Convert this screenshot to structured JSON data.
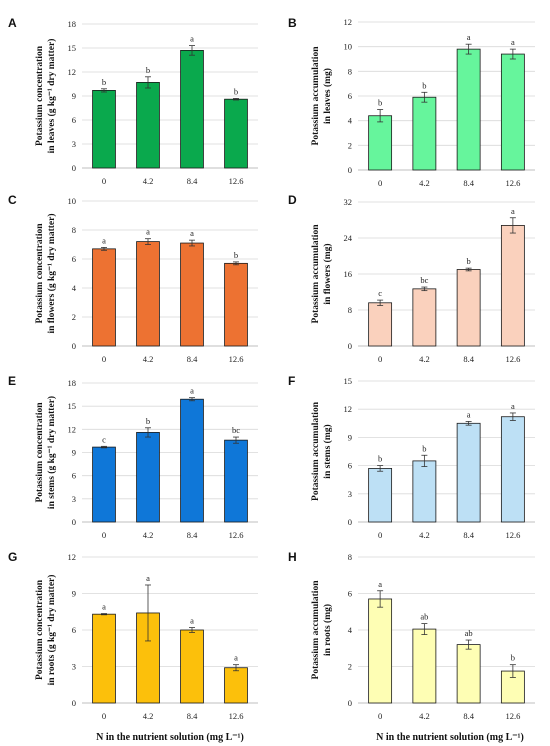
{
  "figure": {
    "xlabel_left": "N in the nutrient solution (mg L⁻¹)",
    "xlabel_right": "N in the nutrient solution (mg L⁻¹)"
  },
  "chart_data": [
    {
      "panel": "A",
      "type": "bar",
      "categories": [
        "0",
        "4.2",
        "8.4",
        "12.6"
      ],
      "values": [
        9.7,
        10.7,
        14.7,
        8.6
      ],
      "errors": [
        0.2,
        0.7,
        0.6,
        0.1
      ],
      "letters": [
        "b",
        "b",
        "a",
        "b"
      ],
      "ylabel_lines": [
        "Potassium concentration",
        "in leaves (g kg⁻¹ dry matter)"
      ],
      "ylim": [
        0,
        18
      ],
      "yticks": [
        0,
        3,
        6,
        9,
        12,
        15,
        18
      ],
      "grid": true,
      "color": "#0aa94d"
    },
    {
      "panel": "B",
      "type": "bar",
      "categories": [
        "0",
        "4.2",
        "8.4",
        "12.6"
      ],
      "values": [
        4.4,
        5.9,
        9.8,
        9.4
      ],
      "errors": [
        0.5,
        0.4,
        0.4,
        0.4
      ],
      "letters": [
        "b",
        "b",
        "a",
        "a"
      ],
      "ylabel_lines": [
        "Potassium accumulation",
        "in leaves (mg)"
      ],
      "ylim": [
        0,
        12
      ],
      "yticks": [
        0,
        2,
        4,
        6,
        8,
        10,
        12
      ],
      "grid": true,
      "color": "#66f59c"
    },
    {
      "panel": "C",
      "type": "bar",
      "categories": [
        "0",
        "4.2",
        "8.4",
        "12.6"
      ],
      "values": [
        6.7,
        7.2,
        7.1,
        5.7
      ],
      "errors": [
        0.1,
        0.2,
        0.2,
        0.1
      ],
      "letters": [
        "a",
        "a",
        "a",
        "b"
      ],
      "ylabel_lines": [
        "Potassium concentration",
        "in flowers (g kg⁻¹ dry matter)"
      ],
      "ylim": [
        0,
        10
      ],
      "yticks": [
        0,
        2,
        4,
        6,
        8,
        10
      ],
      "grid": true,
      "color": "#ed7232"
    },
    {
      "panel": "D",
      "type": "bar",
      "categories": [
        "0",
        "4.2",
        "8.4",
        "12.6"
      ],
      "values": [
        9.6,
        12.7,
        17.0,
        26.8
      ],
      "errors": [
        0.6,
        0.4,
        0.3,
        1.7
      ],
      "letters": [
        "c",
        "bc",
        "b",
        "a"
      ],
      "ylabel_lines": [
        "Potassium accumulation",
        "in flowers (mg)"
      ],
      "ylim": [
        0,
        32
      ],
      "yticks": [
        0,
        8,
        16,
        24,
        32
      ],
      "grid": true,
      "color": "#fad1bd"
    },
    {
      "panel": "E",
      "type": "bar",
      "categories": [
        "0",
        "4.2",
        "8.4",
        "12.6"
      ],
      "values": [
        9.7,
        11.6,
        15.9,
        10.6
      ],
      "errors": [
        0.1,
        0.6,
        0.2,
        0.4
      ],
      "letters": [
        "c",
        "b",
        "a",
        "bc"
      ],
      "ylabel_lines": [
        "Potassium concentration",
        "in stems (g kg⁻¹ dry matter)"
      ],
      "ylim": [
        0,
        18
      ],
      "yticks": [
        0,
        3,
        6,
        9,
        12,
        15,
        18
      ],
      "grid": true,
      "color": "#0f77d8"
    },
    {
      "panel": "F",
      "type": "bar",
      "categories": [
        "0",
        "4.2",
        "8.4",
        "12.6"
      ],
      "values": [
        5.7,
        6.5,
        10.5,
        11.2
      ],
      "errors": [
        0.3,
        0.6,
        0.2,
        0.4
      ],
      "letters": [
        "b",
        "b",
        "a",
        "a"
      ],
      "ylabel_lines": [
        "Potassium accumulation",
        "in stems (mg)"
      ],
      "ylim": [
        0,
        15
      ],
      "yticks": [
        0,
        3,
        6,
        9,
        12,
        15
      ],
      "grid": true,
      "color": "#bde0f5"
    },
    {
      "panel": "G",
      "type": "bar",
      "categories": [
        "0",
        "4.2",
        "8.4",
        "12.6"
      ],
      "values": [
        7.3,
        7.4,
        6.0,
        2.9
      ],
      "errors": [
        0.05,
        2.3,
        0.2,
        0.25
      ],
      "letters": [
        "a",
        "a",
        "a",
        "a"
      ],
      "ylabel_lines": [
        "Potassium concentration",
        "in roots (g kg⁻¹ dry matter)"
      ],
      "ylim": [
        0,
        12
      ],
      "yticks": [
        0,
        3,
        6,
        9,
        12
      ],
      "grid": true,
      "color": "#fcc00b"
    },
    {
      "panel": "H",
      "type": "bar",
      "categories": [
        "0",
        "4.2",
        "8.4",
        "12.6"
      ],
      "values": [
        5.7,
        4.05,
        3.2,
        1.75
      ],
      "errors": [
        0.45,
        0.3,
        0.25,
        0.35
      ],
      "letters": [
        "a",
        "ab",
        "ab",
        "b"
      ],
      "ylabel_lines": [
        "Potassium accumulation",
        "in roots (mg)"
      ],
      "ylim": [
        0,
        8
      ],
      "yticks": [
        0,
        2,
        4,
        6,
        8
      ],
      "grid": true,
      "color": "#fefeb4"
    }
  ]
}
